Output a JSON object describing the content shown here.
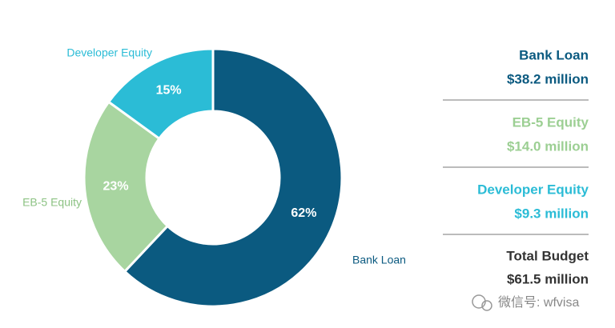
{
  "chart_data": {
    "type": "donut",
    "categories": [
      "Bank Loan",
      "EB-5 Equity",
      "Developer Equity"
    ],
    "values": [
      62,
      23,
      15
    ],
    "value_labels": [
      "62%",
      "23%",
      "15%"
    ],
    "colors": [
      "#0b5a80",
      "#a8d5a0",
      "#2bbcd6"
    ]
  },
  "summary": {
    "amounts": [
      "$38.2 million",
      "$14.0 million",
      "$9.3 million"
    ],
    "total_label": "Total Budget",
    "total_amount": "$61.5 million"
  },
  "watermark": "微信号: wfvisa"
}
